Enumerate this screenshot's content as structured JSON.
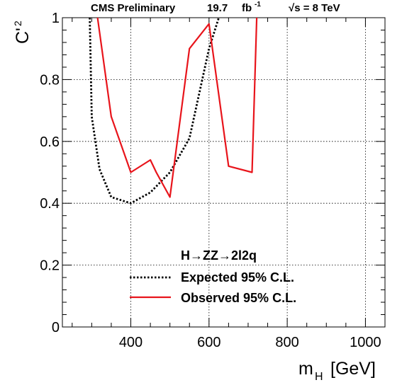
{
  "chart_data": {
    "type": "line",
    "header": {
      "experiment": "CMS Preliminary",
      "luminosity_value": "19.7",
      "luminosity_unit": "fb",
      "luminosity_exponent": "-1",
      "energy": "√s = 8 TeV"
    },
    "ylabel": {
      "base": "C'",
      "superscript": "2"
    },
    "xlabel": {
      "base": "m",
      "subscript": "H",
      "unit": "[GeV]"
    },
    "xlim": [
      225,
      1050
    ],
    "ylim": [
      0,
      1
    ],
    "x_ticks": [
      {
        "value": 400,
        "label": "400"
      },
      {
        "value": 600,
        "label": "600"
      },
      {
        "value": 800,
        "label": "800"
      },
      {
        "value": 1000,
        "label": "1000"
      }
    ],
    "y_ticks": [
      {
        "value": 0,
        "label": "0"
      },
      {
        "value": 0.2,
        "label": "0.2"
      },
      {
        "value": 0.4,
        "label": "0.4"
      },
      {
        "value": 0.6,
        "label": "0.6"
      },
      {
        "value": 0.8,
        "label": "0.8"
      },
      {
        "value": 1,
        "label": "1"
      }
    ],
    "grid": true,
    "legend": {
      "title": "H→ZZ→2l2q",
      "placement": "bottom-center"
    },
    "series": [
      {
        "name": "Expected 95% C.L.",
        "style": "dotted",
        "color": "#000000",
        "points": [
          [
            295,
            1.0
          ],
          [
            300,
            0.68
          ],
          [
            320,
            0.51
          ],
          [
            350,
            0.42
          ],
          [
            400,
            0.4
          ],
          [
            450,
            0.435
          ],
          [
            500,
            0.5
          ],
          [
            550,
            0.61
          ],
          [
            600,
            0.9
          ],
          [
            625,
            1.0
          ]
        ]
      },
      {
        "name": "Observed 95% C.L.",
        "style": "solid",
        "color": "#e8141b",
        "points": [
          [
            315,
            1.0
          ],
          [
            350,
            0.68
          ],
          [
            400,
            0.5
          ],
          [
            450,
            0.54
          ],
          [
            465,
            0.5
          ],
          [
            500,
            0.42
          ],
          [
            550,
            0.9
          ],
          [
            600,
            0.98
          ],
          [
            650,
            0.52
          ],
          [
            710,
            0.5
          ],
          [
            722,
            1.0
          ]
        ]
      }
    ]
  }
}
